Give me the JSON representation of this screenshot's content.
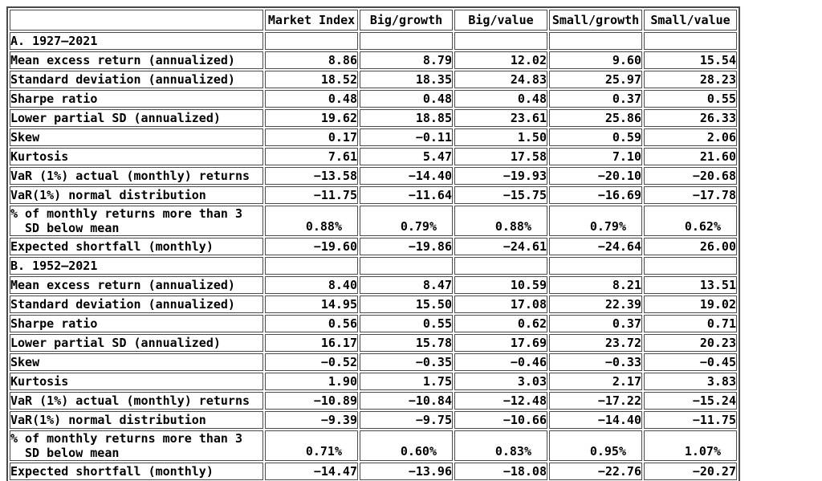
{
  "table": {
    "columns": [
      "",
      "Market Index",
      "Big/growth",
      "Big/value",
      "Small/growth",
      "Small/value"
    ],
    "sections": [
      {
        "title": "A. 1927–2021",
        "rows": [
          {
            "label": "Mean excess return (annualized)",
            "values": [
              "8.86",
              "8.79",
              "12.02",
              "9.60",
              "15.54"
            ]
          },
          {
            "label": "Standard deviation (annualized)",
            "values": [
              "18.52",
              "18.35",
              "24.83",
              "25.97",
              "28.23"
            ]
          },
          {
            "label": "Sharpe ratio",
            "values": [
              "0.48",
              "0.48",
              "0.48",
              "0.37",
              "0.55"
            ]
          },
          {
            "label": "Lower partial SD (annualized)",
            "values": [
              "19.62",
              "18.85",
              "23.61",
              "25.86",
              "26.33"
            ]
          },
          {
            "label": "Skew",
            "values": [
              "0.17",
              "−0.11",
              "1.50",
              "0.59",
              "2.06"
            ]
          },
          {
            "label": "Kurtosis",
            "values": [
              "7.61",
              "5.47",
              "17.58",
              "7.10",
              "21.60"
            ]
          },
          {
            "label": "VaR (1%) actual (monthly) returns",
            "values": [
              "−13.58",
              "−14.40",
              "−19.93",
              "−20.10",
              "−20.68"
            ]
          },
          {
            "label": "VaR(1%) normal distribution",
            "values": [
              "−11.75",
              "−11.64",
              "−15.75",
              "−16.69",
              "−17.78"
            ]
          },
          {
            "label_line1": "% of monthly returns more than 3",
            "label_line2": "SD below mean",
            "tall": true,
            "percent": true,
            "values": [
              "0.88%",
              "0.79%",
              "0.88%",
              "0.79%",
              "0.62%"
            ]
          },
          {
            "label": "Expected shortfall (monthly)",
            "values": [
              "−19.60",
              "−19.86",
              "−24.61",
              "−24.64",
              "26.00"
            ]
          }
        ]
      },
      {
        "title": "B. 1952–2021",
        "rows": [
          {
            "label": "Mean excess return (annualized)",
            "values": [
              "8.40",
              "8.47",
              "10.59",
              "8.21",
              "13.51"
            ]
          },
          {
            "label": "Standard deviation (annualized)",
            "values": [
              "14.95",
              "15.50",
              "17.08",
              "22.39",
              "19.02"
            ]
          },
          {
            "label": "Sharpe ratio",
            "values": [
              "0.56",
              "0.55",
              "0.62",
              "0.37",
              "0.71"
            ]
          },
          {
            "label": "Lower partial SD (annualized)",
            "values": [
              "16.17",
              "15.78",
              "17.69",
              "23.72",
              "20.23"
            ]
          },
          {
            "label": "Skew",
            "values": [
              "−0.52",
              "−0.35",
              "−0.46",
              "−0.33",
              "−0.45"
            ]
          },
          {
            "label": "Kurtosis",
            "values": [
              "1.90",
              "1.75",
              "3.03",
              "2.17",
              "3.83"
            ]
          },
          {
            "label": "VaR (1%) actual (monthly) returns",
            "values": [
              "−10.89",
              "−10.84",
              "−12.48",
              "−17.22",
              "−15.24"
            ]
          },
          {
            "label": "VaR(1%) normal distribution",
            "values": [
              "−9.39",
              "−9.75",
              "−10.66",
              "−14.40",
              "−11.75"
            ]
          },
          {
            "label_line1": "% of monthly returns more than 3",
            "label_line2": "SD below mean",
            "tall": true,
            "percent": true,
            "values": [
              "0.71%",
              "0.60%",
              "0.83%",
              "0.95%",
              "1.07%"
            ]
          },
          {
            "label": "Expected shortfall (monthly)",
            "values": [
              "−14.47",
              "−13.96",
              "−18.08",
              "−22.76",
              "−20.27"
            ]
          }
        ]
      }
    ],
    "colors": {
      "border": "#4a4a4a",
      "text": "#000000",
      "background": "#ffffff"
    }
  }
}
